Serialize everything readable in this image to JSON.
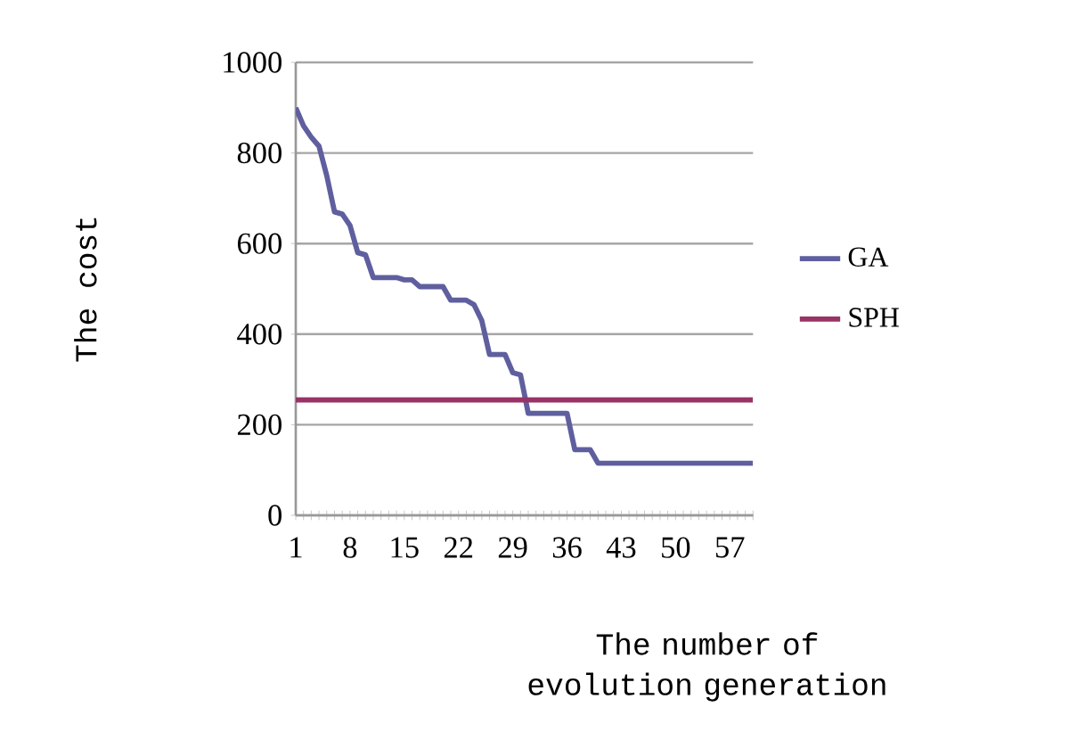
{
  "chart_data": {
    "type": "line",
    "xlabel": "The number of evolution generation",
    "ylabel": "The cost",
    "categories": [
      "1",
      null,
      null,
      null,
      null,
      null,
      null,
      "8",
      null,
      null,
      null,
      null,
      null,
      null,
      "15",
      null,
      null,
      null,
      null,
      null,
      null,
      "22",
      null,
      null,
      null,
      null,
      null,
      null,
      "29",
      null,
      null,
      null,
      null,
      null,
      null,
      "36",
      null,
      null,
      null,
      null,
      null,
      null,
      "43",
      null,
      null,
      null,
      null,
      null,
      null,
      "50",
      null,
      null,
      null,
      null,
      null,
      null,
      "57",
      null,
      null,
      null
    ],
    "series": [
      {
        "name": "GA",
        "color": "#5f5f9f",
        "values": [
          900,
          860,
          835,
          815,
          750,
          670,
          665,
          640,
          580,
          575,
          525,
          525,
          525,
          525,
          520,
          520,
          505,
          505,
          505,
          505,
          475,
          475,
          475,
          465,
          430,
          355,
          355,
          355,
          315,
          310,
          225,
          225,
          225,
          225,
          225,
          225,
          145,
          145,
          145,
          115,
          115,
          115,
          115,
          115,
          115,
          115,
          115,
          115,
          115,
          115,
          115,
          115,
          115,
          115,
          115,
          115,
          115,
          115,
          115,
          115
        ]
      },
      {
        "name": "SPH",
        "color": "#993366",
        "values": [
          255,
          255,
          255,
          255,
          255,
          255,
          255,
          255,
          255,
          255,
          255,
          255,
          255,
          255,
          255,
          255,
          255,
          255,
          255,
          255,
          255,
          255,
          255,
          255,
          255,
          255,
          255,
          255,
          255,
          255,
          255,
          255,
          255,
          255,
          255,
          255,
          255,
          255,
          255,
          255,
          255,
          255,
          255,
          255,
          255,
          255,
          255,
          255,
          255,
          255,
          255,
          255,
          255,
          255,
          255,
          255,
          255,
          255,
          255,
          255
        ]
      }
    ],
    "ylim": [
      0,
      1000
    ],
    "yticks": [
      0,
      200,
      400,
      600,
      800,
      1000
    ],
    "grid": "y",
    "legend": "right"
  }
}
